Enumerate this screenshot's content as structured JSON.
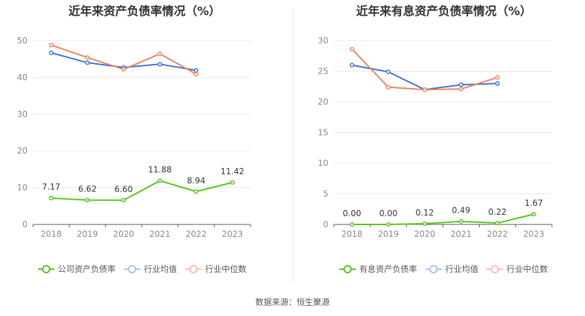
{
  "chart_data": [
    {
      "type": "line",
      "title": "近年来资产负债率情况（%）",
      "categories": [
        "2018",
        "2019",
        "2020",
        "2021",
        "2022",
        "2023"
      ],
      "ylim": [
        0,
        50
      ],
      "yticks": [
        0,
        10,
        20,
        30,
        40,
        50
      ],
      "grid": true,
      "legend_position": "bottom",
      "series": [
        {
          "name": "公司资产负债率",
          "color": "#52c41a",
          "values": [
            7.17,
            6.62,
            6.6,
            11.88,
            8.94,
            11.42
          ],
          "labels": [
            "7.17",
            "6.62",
            "6.60",
            "11.88",
            "8.94",
            "11.42"
          ]
        },
        {
          "name": "行业均值",
          "color": "#3b6fd8",
          "values": [
            46.7,
            44.0,
            42.7,
            43.6,
            41.9,
            null
          ]
        },
        {
          "name": "行业中位数",
          "color": "#f08159",
          "values": [
            48.8,
            45.4,
            42.2,
            46.4,
            40.9,
            null
          ]
        }
      ]
    },
    {
      "type": "line",
      "title": "近年来有息资产负债率情况（%）",
      "categories": [
        "2018",
        "2019",
        "2020",
        "2021",
        "2022",
        "2023"
      ],
      "ylim": [
        0,
        30
      ],
      "yticks": [
        0,
        5,
        10,
        15,
        20,
        25,
        30
      ],
      "grid": true,
      "legend_position": "bottom",
      "series": [
        {
          "name": "有息资产负债率",
          "color": "#52c41a",
          "values": [
            0.0,
            0.0,
            0.12,
            0.49,
            0.22,
            1.67
          ],
          "labels": [
            "0.00",
            "0.00",
            "0.12",
            "0.49",
            "0.22",
            "1.67"
          ]
        },
        {
          "name": "行业均值",
          "color": "#3b6fd8",
          "values": [
            26.0,
            24.9,
            22.0,
            22.8,
            23.0,
            null
          ]
        },
        {
          "name": "行业中位数",
          "color": "#f08159",
          "values": [
            28.6,
            22.4,
            22.0,
            22.1,
            24.0,
            null
          ]
        }
      ]
    }
  ],
  "footer": {
    "source": "数据来源：恒生聚源"
  }
}
